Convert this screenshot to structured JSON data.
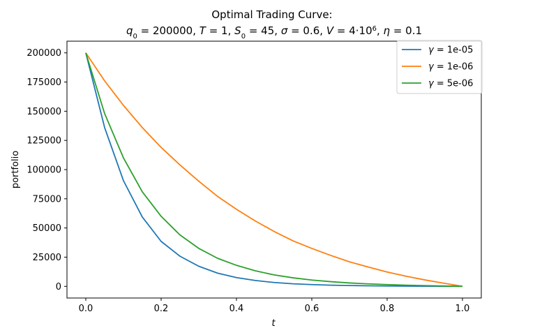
{
  "chart_data": {
    "type": "line",
    "title_line1": "Optimal Trading Curve:",
    "title_params": [
      {
        "lhs": "q",
        "sub": "0",
        "rhs": "200000"
      },
      {
        "lhs": "T",
        "sub": "",
        "rhs": "1"
      },
      {
        "lhs": "S",
        "sub": "0",
        "rhs": "45"
      },
      {
        "lhs": "σ",
        "sub": "",
        "rhs": "0.6"
      },
      {
        "lhs": "V",
        "sub": "",
        "rhs": "4·10",
        "sup": "6"
      },
      {
        "lhs": "η",
        "sub": "",
        "rhs": "0.1"
      }
    ],
    "xlabel": "t",
    "ylabel": "portfolio",
    "xlim": [
      -0.05,
      1.05
    ],
    "ylim": [
      -10000,
      210000
    ],
    "xticks": [
      "0.0",
      "0.2",
      "0.4",
      "0.6",
      "0.8",
      "1.0"
    ],
    "xtick_values": [
      0,
      0.2,
      0.4,
      0.6,
      0.8,
      1.0
    ],
    "yticks": [
      "0",
      "25000",
      "50000",
      "75000",
      "100000",
      "125000",
      "150000",
      "175000",
      "200000"
    ],
    "ytick_values": [
      0,
      25000,
      50000,
      75000,
      100000,
      125000,
      150000,
      175000,
      200000
    ],
    "legend_position": "top-right",
    "grid": false,
    "series": [
      {
        "name": "γ =  1e-05",
        "legend_symbol": "γ",
        "legend_value": "1e-05",
        "color": "#1f77b4",
        "x": [
          0,
          0.05,
          0.1,
          0.15,
          0.2,
          0.25,
          0.3,
          0.35,
          0.4,
          0.45,
          0.5,
          0.55,
          0.6,
          0.65,
          0.7,
          0.75,
          0.8,
          0.85,
          0.9,
          0.95,
          1.0
        ],
        "y": [
          200000,
          136000,
          90500,
          59400,
          38500,
          25800,
          17200,
          11300,
          7500,
          5000,
          3300,
          2200,
          1500,
          1000,
          700,
          450,
          300,
          200,
          120,
          50,
          0
        ]
      },
      {
        "name": "γ =  1e-06",
        "legend_symbol": "γ",
        "legend_value": "1e-06",
        "color": "#ff7f0e",
        "x": [
          0,
          0.05,
          0.1,
          0.15,
          0.2,
          0.25,
          0.3,
          0.35,
          0.4,
          0.45,
          0.5,
          0.55,
          0.6,
          0.65,
          0.7,
          0.75,
          0.8,
          0.85,
          0.9,
          0.95,
          1.0
        ],
        "y": [
          200000,
          176000,
          155000,
          136000,
          119000,
          104000,
          90000,
          77000,
          66000,
          56000,
          47000,
          39000,
          32500,
          26500,
          21000,
          16500,
          12300,
          8700,
          5500,
          2700,
          0
        ]
      },
      {
        "name": "γ =  5e-06",
        "legend_symbol": "γ",
        "legend_value": "5e-06",
        "color": "#2ca02c",
        "x": [
          0,
          0.05,
          0.1,
          0.15,
          0.2,
          0.25,
          0.3,
          0.35,
          0.4,
          0.45,
          0.5,
          0.55,
          0.6,
          0.65,
          0.7,
          0.75,
          0.8,
          0.85,
          0.9,
          0.95,
          1.0
        ],
        "y": [
          200000,
          148000,
          110000,
          81000,
          60000,
          44000,
          32500,
          24000,
          18000,
          13300,
          9800,
          7300,
          5400,
          4000,
          2900,
          2100,
          1500,
          1000,
          600,
          280,
          0
        ]
      }
    ]
  }
}
